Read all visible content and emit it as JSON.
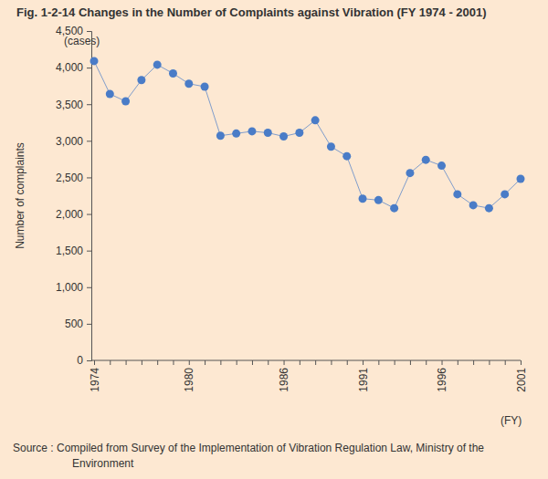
{
  "chart_data": {
    "type": "line",
    "title": "Fig. 1-2-14  Changes in the Number of Complaints against Vibration (FY 1974 - 2001)",
    "y_unit": "(cases)",
    "y_label": "Number of complaints",
    "x_label": "(FY)",
    "source": [
      "Source : Compiled from Survey of the Implementation of Vibration Regulation Law, Ministry of the",
      "Environment"
    ],
    "categories": [
      "1974",
      null,
      null,
      null,
      null,
      null,
      "1980",
      null,
      null,
      null,
      null,
      null,
      "1986",
      null,
      null,
      null,
      null,
      "1991",
      null,
      null,
      null,
      null,
      "1996",
      null,
      null,
      null,
      null,
      "2001"
    ],
    "values": [
      4090,
      3640,
      3540,
      3830,
      4040,
      3920,
      3780,
      3740,
      3070,
      3100,
      3130,
      3110,
      3060,
      3110,
      3280,
      2920,
      2790,
      2210,
      2190,
      2080,
      2560,
      2740,
      2660,
      2270,
      2120,
      2080,
      2270,
      2480
    ],
    "color": "#4a7cc7",
    "marker": "circle",
    "ylim": [
      0,
      4500
    ],
    "yticks": [
      0,
      500,
      {
        "value": 1000,
        "label": "1,000"
      },
      {
        "value": 1500,
        "label": "1,500"
      },
      {
        "value": 2000,
        "label": "2,000"
      },
      {
        "value": 2500,
        "label": "2,500"
      },
      {
        "value": 3000,
        "label": "3,000"
      },
      {
        "value": 3500,
        "label": "3,500"
      },
      {
        "value": 4000,
        "label": "4,000"
      },
      {
        "value": 4500,
        "label": "4,500"
      }
    ],
    "grid": false
  }
}
